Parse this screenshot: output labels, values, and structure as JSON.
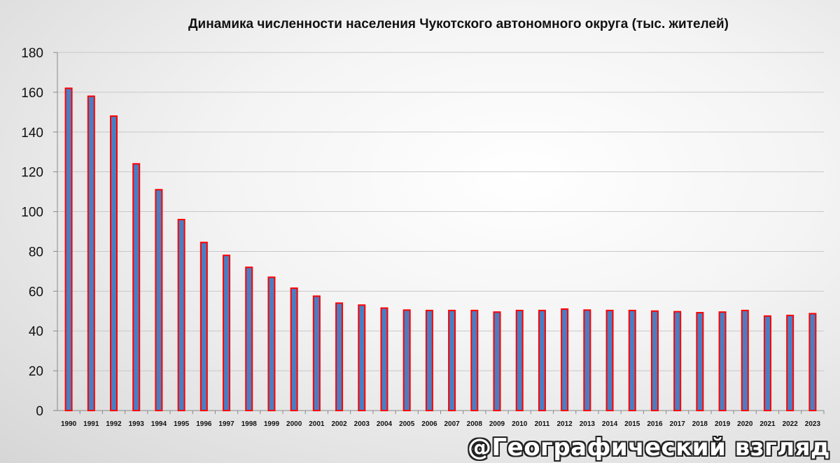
{
  "chart_data": {
    "type": "bar",
    "title": "Динамика численности населения Чукотского автономного округа (тыс. жителей)",
    "xlabel": "",
    "ylabel": "",
    "ylim": [
      0,
      180
    ],
    "yticks": [
      0,
      20,
      40,
      60,
      80,
      100,
      120,
      140,
      160,
      180
    ],
    "grid": true,
    "legend": "none",
    "categories": [
      "1990",
      "1991",
      "1992",
      "1993",
      "1994",
      "1995",
      "1996",
      "1997",
      "1998",
      "1999",
      "2000",
      "2001",
      "2002",
      "2003",
      "2004",
      "2005",
      "2006",
      "2007",
      "2008",
      "2009",
      "2010",
      "2011",
      "2012",
      "2013",
      "2014",
      "2015",
      "2016",
      "2017",
      "2018",
      "2019",
      "2020",
      "2021",
      "2022",
      "2023"
    ],
    "values": [
      162,
      158,
      148,
      124,
      111,
      96,
      84.5,
      78,
      72,
      67,
      61.5,
      57.5,
      54,
      53,
      51.5,
      50.5,
      50.3,
      50.3,
      50.3,
      49.5,
      50.3,
      50.3,
      51,
      50.5,
      50.3,
      50.3,
      50,
      49.7,
      49.2,
      49.5,
      50.3,
      47.5,
      47.8,
      48.7
    ],
    "colors": {
      "fill": "#4a7ec2",
      "outline": "#ff0000",
      "grid": "#c8c8c8"
    }
  },
  "watermark": "@Географический взгляд"
}
